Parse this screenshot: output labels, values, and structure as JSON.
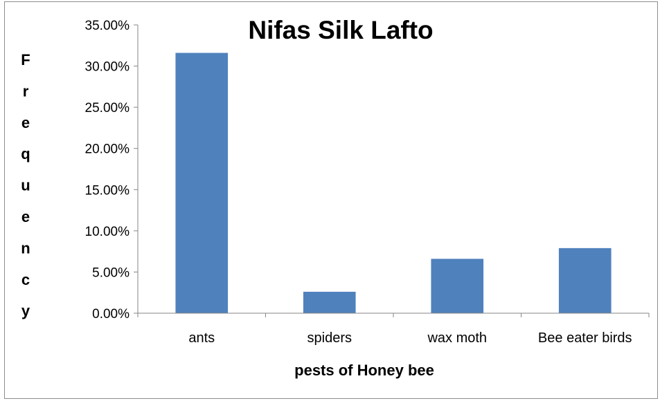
{
  "chart_data": {
    "type": "bar",
    "title": "Nifas Silk Lafto",
    "xlabel": "pests of Honey bee",
    "ylabel": "Frequency",
    "categories": [
      "ants",
      "spiders",
      "wax moth",
      "Bee eater birds"
    ],
    "values": [
      31.6,
      2.6,
      6.6,
      7.9
    ],
    "ylim": [
      0,
      35
    ],
    "yticks": [
      "0.00%",
      "5.00%",
      "10.00%",
      "15.00%",
      "20.00%",
      "25.00%",
      "30.00%",
      "35.00%"
    ],
    "grid": false,
    "legend": "none",
    "bar_color": "#4f81bd"
  }
}
